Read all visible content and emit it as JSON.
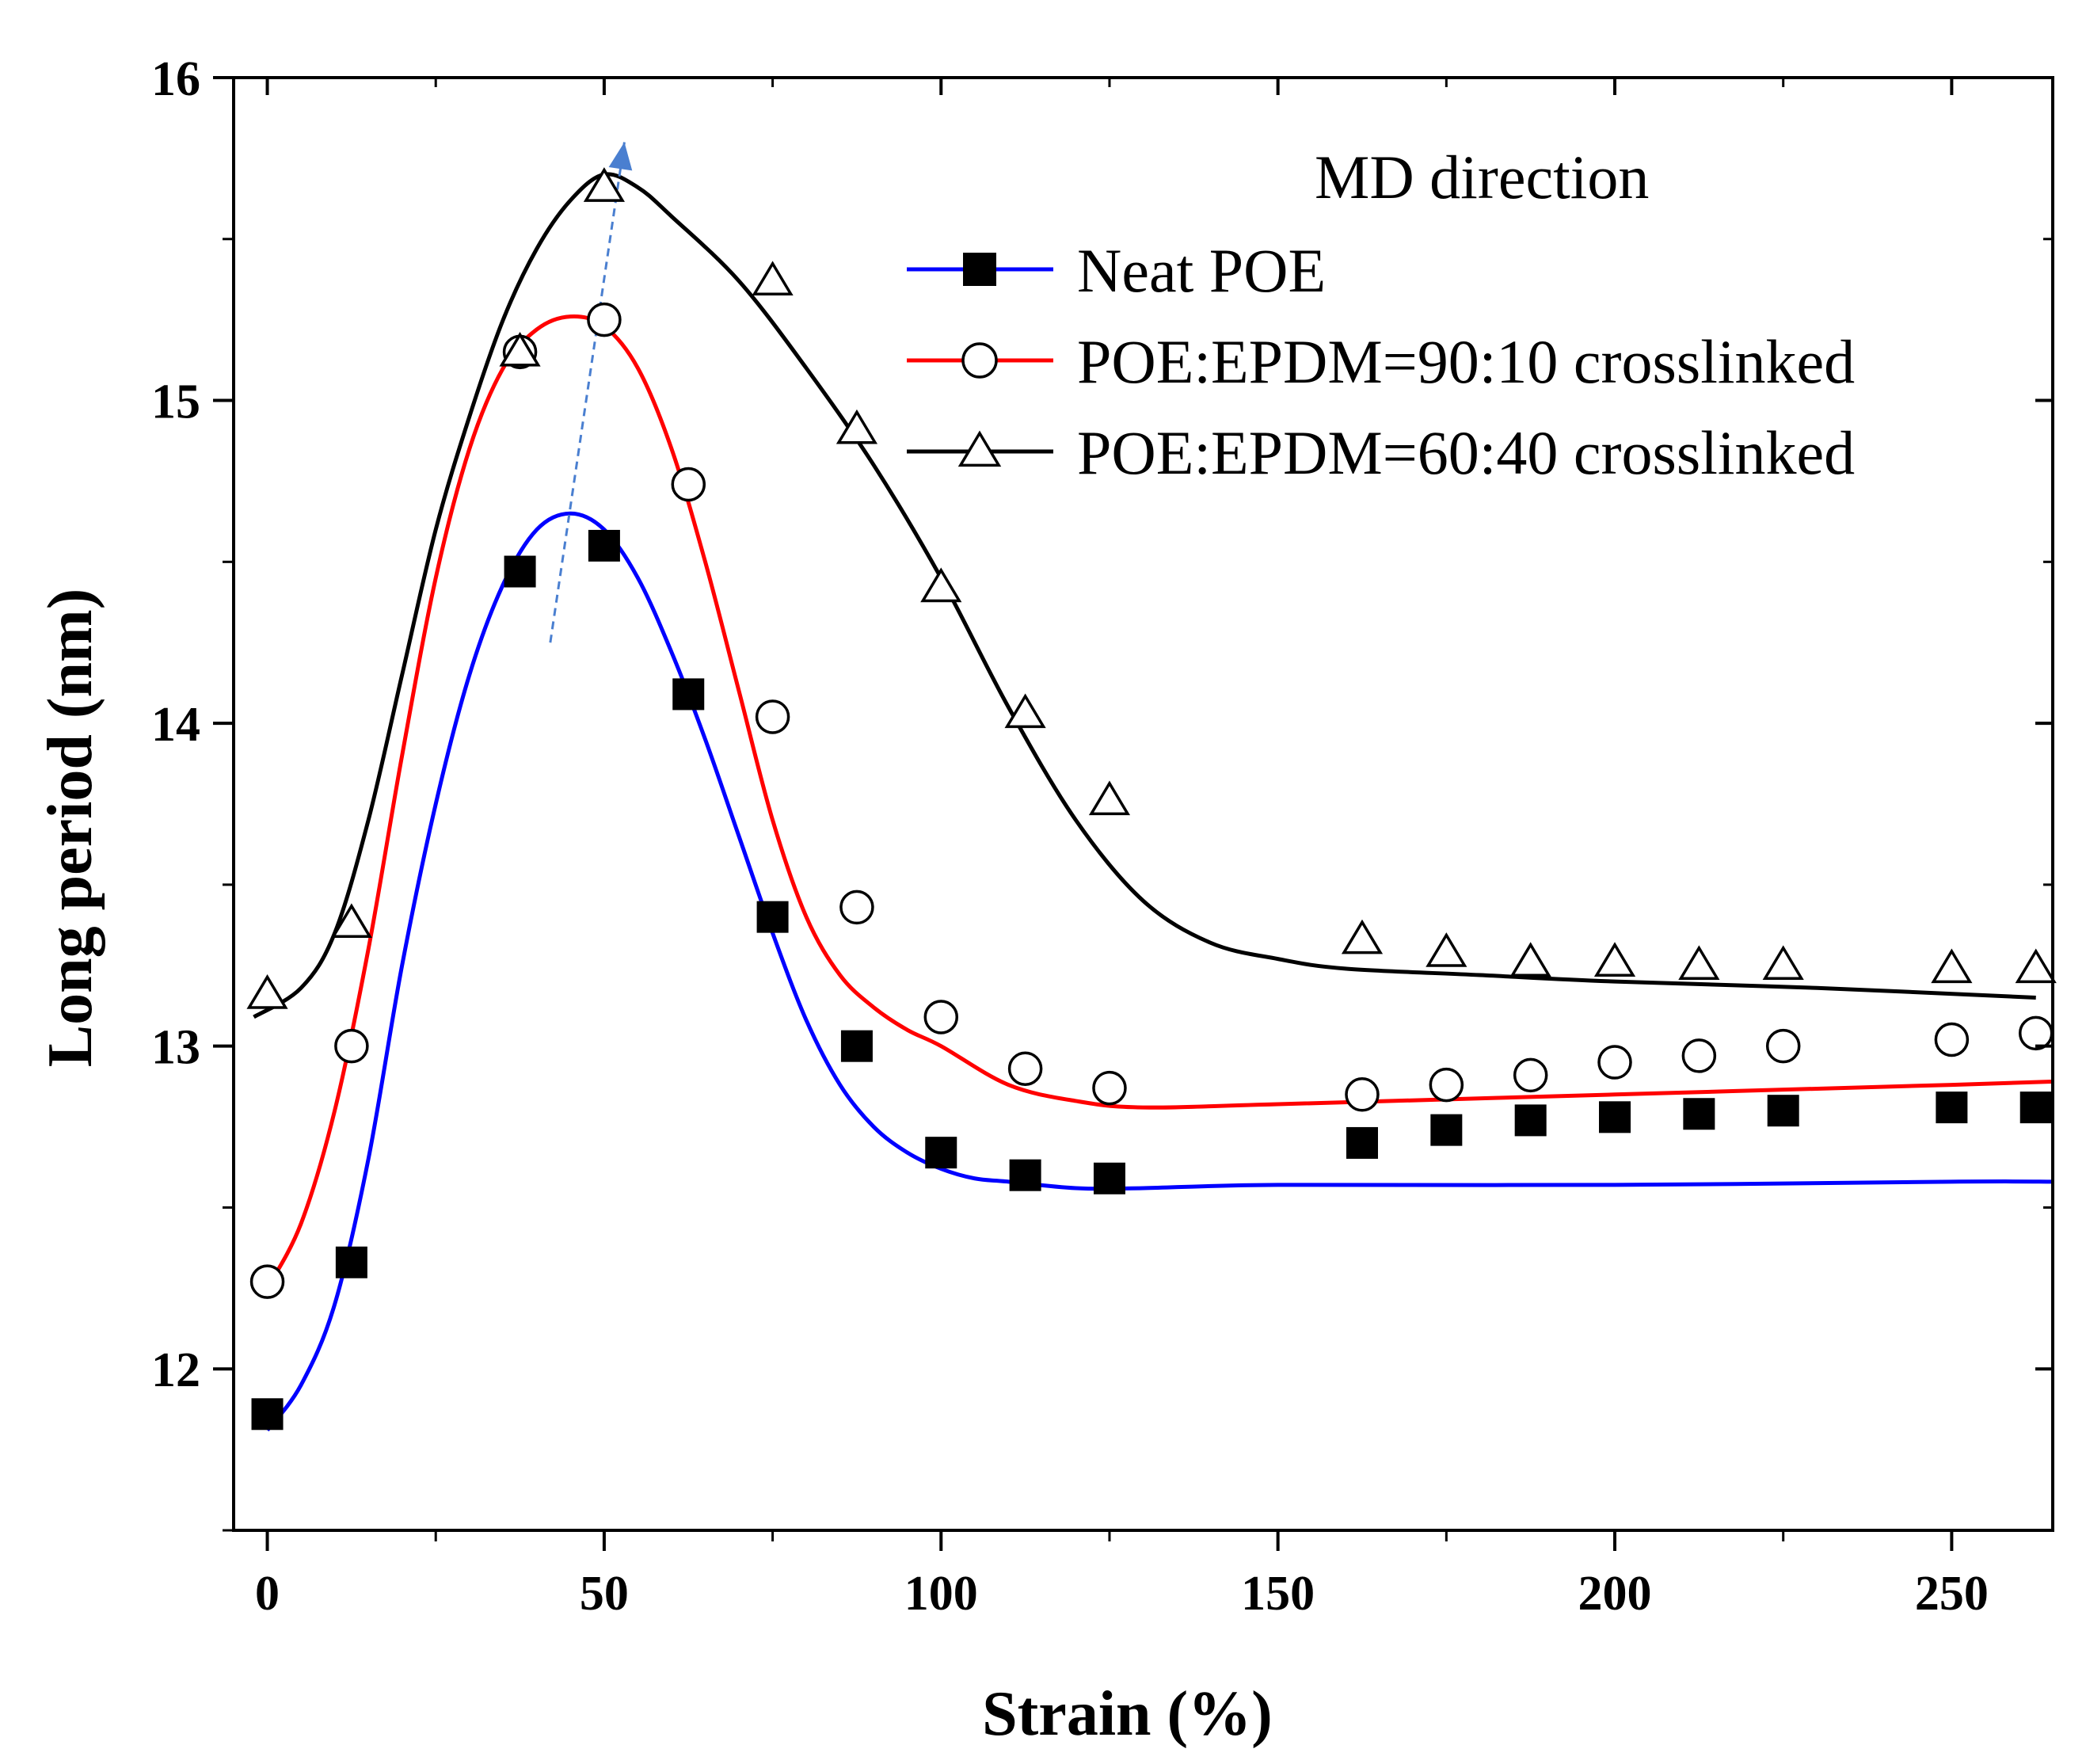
{
  "chart_data": {
    "type": "scatter",
    "title": "",
    "annotation": "MD direction",
    "xlabel": "Strain (%)",
    "ylabel": "Long period (nm)",
    "xlim": [
      -5,
      265
    ],
    "ylim": [
      11.5,
      16
    ],
    "xticks": [
      0,
      50,
      100,
      150,
      200,
      250
    ],
    "yticks": [
      12,
      13,
      14,
      15,
      16
    ],
    "legend_position": "top-right",
    "series": [
      {
        "name": "Neat POE",
        "marker": "filled-square",
        "color": "#0000ff",
        "marker_color": "#000000",
        "x": [
          0,
          12.5,
          37.5,
          50,
          62.5,
          75,
          87.5,
          100,
          112.5,
          125,
          162.5,
          175,
          187.5,
          200,
          212.5,
          225,
          250,
          262.5
        ],
        "values": [
          11.86,
          12.33,
          14.47,
          14.55,
          14.09,
          13.4,
          13.0,
          12.67,
          12.6,
          12.59,
          12.7,
          12.74,
          12.77,
          12.78,
          12.79,
          12.8,
          12.81,
          12.81
        ],
        "fit": {
          "x": [
            0,
            5,
            10,
            15,
            20,
            25,
            30,
            35,
            40,
            45,
            50,
            55,
            60,
            65,
            70,
            75,
            80,
            85,
            90,
            95,
            100,
            105,
            110,
            120,
            130,
            150,
            200,
            250,
            265
          ],
          "y": [
            11.81,
            11.95,
            12.2,
            12.65,
            13.25,
            13.75,
            14.15,
            14.43,
            14.6,
            14.65,
            14.6,
            14.45,
            14.22,
            13.95,
            13.65,
            13.35,
            13.08,
            12.88,
            12.75,
            12.67,
            12.62,
            12.59,
            12.58,
            12.56,
            12.56,
            12.57,
            12.57,
            12.58,
            12.58
          ]
        }
      },
      {
        "name": "POE:EPDM=90:10 crosslinked",
        "marker": "open-circle",
        "color": "#ff0000",
        "marker_color": "#000000",
        "x": [
          0,
          12.5,
          37.5,
          50,
          62.5,
          75,
          87.5,
          100,
          112.5,
          125,
          162.5,
          175,
          187.5,
          200,
          212.5,
          225,
          250,
          262.5
        ],
        "values": [
          12.27,
          13.0,
          15.15,
          15.25,
          14.74,
          14.02,
          13.43,
          13.09,
          12.93,
          12.87,
          12.85,
          12.88,
          12.91,
          12.95,
          12.97,
          13.0,
          13.02,
          13.04
        ],
        "fit": {
          "x": [
            0,
            5,
            10,
            15,
            20,
            25,
            30,
            35,
            40,
            45,
            50,
            55,
            60,
            65,
            70,
            75,
            80,
            85,
            90,
            95,
            100,
            110,
            120,
            130,
            150,
            200,
            250,
            265
          ],
          "y": [
            12.25,
            12.45,
            12.8,
            13.3,
            13.9,
            14.45,
            14.85,
            15.1,
            15.22,
            15.26,
            15.23,
            15.1,
            14.85,
            14.5,
            14.1,
            13.7,
            13.4,
            13.22,
            13.12,
            13.05,
            13.0,
            12.88,
            12.83,
            12.81,
            12.82,
            12.85,
            12.88,
            12.89
          ]
        }
      },
      {
        "name": "POE:EPDM=60:40 crosslinked",
        "marker": "open-triangle",
        "color": "#000000",
        "marker_color": "#000000",
        "x": [
          0,
          12.5,
          37.5,
          50,
          75,
          87.5,
          100,
          112.5,
          125,
          162.5,
          175,
          187.5,
          200,
          212.5,
          225,
          250,
          262.5
        ],
        "values": [
          13.16,
          13.38,
          15.15,
          15.66,
          15.37,
          14.91,
          14.42,
          14.03,
          13.76,
          13.33,
          13.29,
          13.26,
          13.26,
          13.25,
          13.25,
          13.24,
          13.24
        ],
        "fit": {
          "x": [
            -2,
            5,
            10,
            15,
            20,
            25,
            30,
            35,
            40,
            45,
            50,
            55,
            60,
            70,
            80,
            90,
            100,
            110,
            120,
            130,
            140,
            150,
            160,
            180,
            200,
            230,
            262.5
          ],
          "y": [
            13.09,
            13.18,
            13.35,
            13.7,
            14.15,
            14.6,
            14.95,
            15.25,
            15.47,
            15.62,
            15.7,
            15.66,
            15.57,
            15.37,
            15.1,
            14.8,
            14.45,
            14.05,
            13.7,
            13.45,
            13.32,
            13.27,
            13.24,
            13.22,
            13.2,
            13.18,
            13.15
          ]
        }
      }
    ],
    "trend_arrow": {
      "from": {
        "x": 42,
        "y": 14.25
      },
      "to": {
        "x": 53,
        "y": 15.8
      },
      "color": "#4a7fd0"
    }
  }
}
